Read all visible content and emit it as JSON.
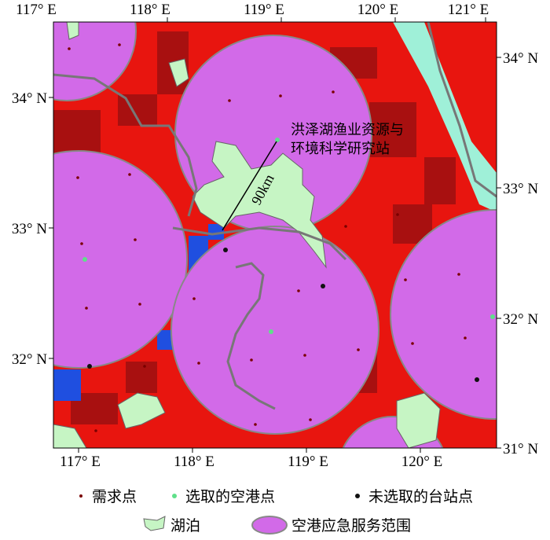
{
  "map": {
    "top_labels": [
      "117° E",
      "118° E",
      "119° E",
      "120° E",
      "121° E"
    ],
    "bottom_labels": [
      "117° E",
      "118° E",
      "119° E",
      "120° E"
    ],
    "left_labels": [
      "34° N",
      "33° N",
      "32° N"
    ],
    "right_labels": [
      "34° N",
      "33° N",
      "32° N",
      "31° N"
    ],
    "annotation": [
      "洪泽湖渔业资源与",
      "环境科学研究站"
    ],
    "distance_label": "90km",
    "legend": [
      "需求点",
      "选取的空港点",
      "未选取的台站点",
      "湖泊",
      "空港应急服务范围"
    ]
  }
}
